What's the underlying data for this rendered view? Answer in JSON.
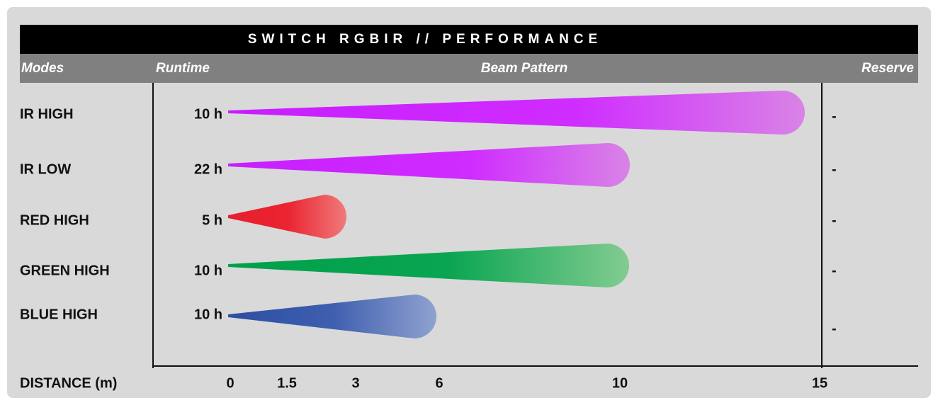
{
  "header": {
    "title": "SWITCH RGBIR // PERFORMANCE",
    "columns": [
      "Modes",
      "Runtime",
      "Beam Pattern",
      "Reserve"
    ]
  },
  "rows": [
    {
      "mode": "IR HIGH",
      "runtime": "10 h",
      "reserve": "-"
    },
    {
      "mode": "IR LOW",
      "runtime": "22 h",
      "reserve": "-"
    },
    {
      "mode": "RED HIGH",
      "runtime": "5 h",
      "reserve": "-"
    },
    {
      "mode": "GREEN HIGH",
      "runtime": "10 h",
      "reserve": "-"
    },
    {
      "mode": "BLUE HIGH",
      "runtime": "10 h",
      "reserve": "-"
    }
  ],
  "axis": {
    "label": "DISTANCE (m)",
    "ticks": [
      "0",
      "1.5",
      "3",
      "6",
      "10",
      "15"
    ]
  }
}
